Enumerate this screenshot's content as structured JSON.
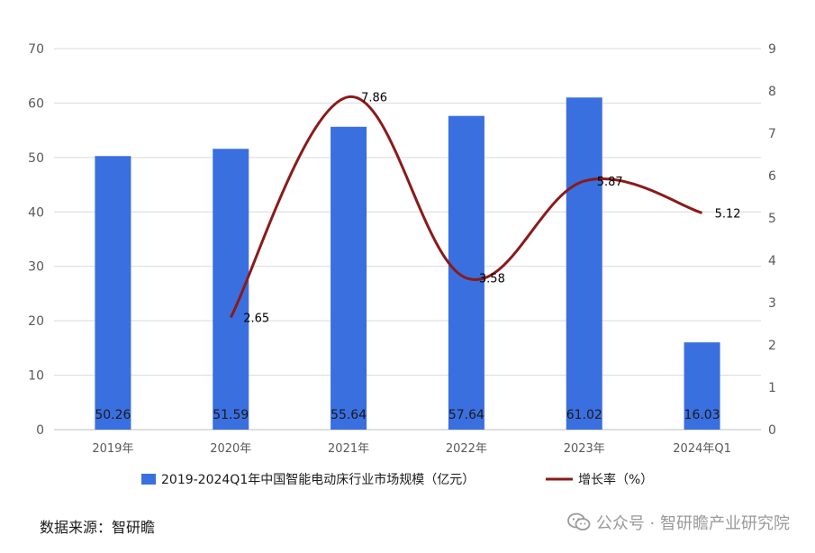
{
  "chart_data": {
    "type": "bar",
    "categories": [
      "2019年",
      "2020年",
      "2021年",
      "2022年",
      "2023年",
      "2024年Q1"
    ],
    "series": [
      {
        "name": "2019-2024Q1年中国智能电动床行业市场规模（亿元）",
        "type": "bar",
        "axis": "left",
        "color": "#3a6fe0",
        "values": [
          50.26,
          51.59,
          55.64,
          57.64,
          61.02,
          16.03
        ],
        "labels": [
          "50.26",
          "51.59",
          "55.64",
          "57.64",
          "61.02",
          "16.03"
        ]
      },
      {
        "name": "增长率（%）",
        "type": "line",
        "axis": "right",
        "color": "#8b1a1a",
        "values": [
          null,
          2.65,
          7.86,
          3.58,
          5.87,
          5.12
        ],
        "labels": [
          "",
          "2.65",
          "7.86",
          "3.58",
          "5.87",
          "5.12"
        ]
      }
    ],
    "y_left": {
      "min": 0,
      "max": 70,
      "ticks": [
        "0",
        "10",
        "20",
        "30",
        "40",
        "50",
        "60",
        "70"
      ]
    },
    "y_right": {
      "min": 0,
      "max": 9,
      "ticks": [
        "0",
        "1",
        "2",
        "3",
        "4",
        "5",
        "6",
        "7",
        "8",
        "9"
      ]
    },
    "grid": true,
    "legend": "bottom"
  },
  "source": "数据来源：智研瞻",
  "watermark": "公众号 · 智研瞻产业研究院"
}
